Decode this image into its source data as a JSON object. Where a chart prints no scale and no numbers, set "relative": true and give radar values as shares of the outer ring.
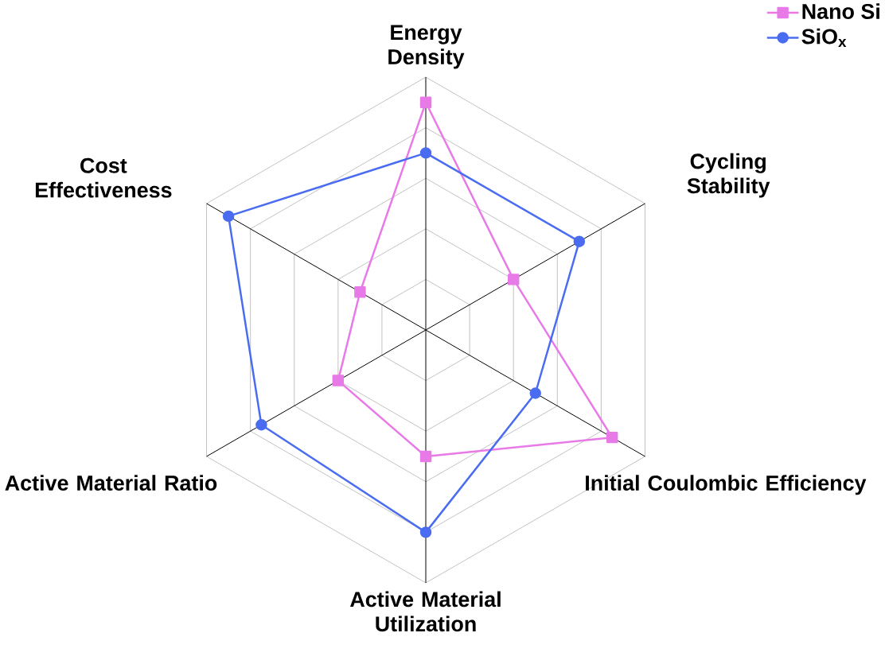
{
  "chart_data": {
    "type": "radar",
    "relative": true,
    "grid": true,
    "legend": "top right",
    "categories": [
      "Energy Density",
      "Cycling Stability",
      "Initial Coulombic Efficiency",
      "Active Material Utilization",
      "Active Material Ratio",
      "Cost Effectiveness"
    ],
    "series": [
      {
        "name": "Nano Si",
        "color": "#e87ae8",
        "marker": "square",
        "values": [
          0.9,
          0.4,
          0.85,
          0.5,
          0.4,
          0.3
        ]
      },
      {
        "name": "SiO$_{x}$",
        "color": "#4a6cf0",
        "marker": "circle",
        "values": [
          0.7,
          0.7,
          0.5,
          0.8,
          0.75,
          0.9
        ]
      }
    ]
  }
}
